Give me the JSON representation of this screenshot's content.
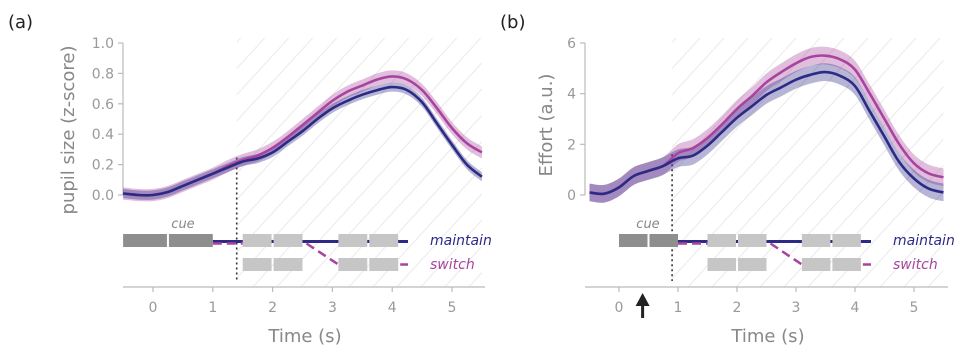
{
  "colors": {
    "maintain": "#2d2a86",
    "switch": "#a8449e",
    "axis": "#bbbbbb",
    "tick_text": "#999999",
    "block_dark": "#8e8e8e",
    "block_light": "#c6c6c6",
    "hatch": "#eaeaea"
  },
  "chart_data": [
    {
      "type": "line",
      "panel_label": "(a)",
      "xlabel": "Time (s)",
      "ylabel": "pupil size (z-score)",
      "xlim": [
        -0.5,
        5.5
      ],
      "ylim": [
        0.0,
        1.0
      ],
      "xticks": [
        0,
        1,
        2,
        3,
        4,
        5
      ],
      "yticks": [
        0.0,
        0.2,
        0.4,
        0.6,
        0.8,
        1.0
      ],
      "ytick_labels": [
        "0.0",
        "0.2",
        "0.4",
        "0.6",
        "0.8",
        "1.0"
      ],
      "grid": false,
      "vline_x": 1.4,
      "x": [
        -0.5,
        -0.25,
        0,
        0.25,
        0.5,
        0.75,
        1.0,
        1.25,
        1.5,
        1.75,
        2.0,
        2.25,
        2.5,
        2.75,
        3.0,
        3.25,
        3.5,
        3.75,
        4.0,
        4.25,
        4.5,
        4.75,
        5.0,
        5.25,
        5.5
      ],
      "series": [
        {
          "name": "maintain",
          "values": [
            0.01,
            0.0,
            0.0,
            0.02,
            0.06,
            0.1,
            0.14,
            0.18,
            0.22,
            0.24,
            0.28,
            0.35,
            0.42,
            0.5,
            0.57,
            0.62,
            0.66,
            0.69,
            0.71,
            0.69,
            0.61,
            0.47,
            0.33,
            0.2,
            0.12
          ],
          "ci": 0.03
        },
        {
          "name": "switch",
          "values": [
            0.01,
            0.0,
            0.0,
            0.02,
            0.06,
            0.1,
            0.14,
            0.19,
            0.23,
            0.26,
            0.31,
            0.38,
            0.46,
            0.54,
            0.62,
            0.68,
            0.72,
            0.76,
            0.78,
            0.76,
            0.69,
            0.57,
            0.44,
            0.34,
            0.28
          ],
          "ci": 0.04
        }
      ],
      "timeline": {
        "cue_label": "cue",
        "cue_block": [
          -0.5,
          1.0
        ],
        "maintain_blocks": [
          [
            1.5,
            2.5
          ],
          [
            3.1,
            4.1
          ]
        ],
        "switch_blocks": [
          [
            1.5,
            2.5
          ],
          [
            3.1,
            4.1
          ]
        ],
        "legend_maintain": "maintain",
        "legend_switch": "switch"
      }
    },
    {
      "type": "line",
      "panel_label": "(b)",
      "xlabel": "Time (s)",
      "ylabel": "Effort (a.u.)",
      "xlim": [
        -0.5,
        5.5
      ],
      "ylim": [
        0,
        6
      ],
      "xticks": [
        0,
        1,
        2,
        3,
        4,
        5
      ],
      "yticks": [
        0,
        2,
        4,
        6
      ],
      "ytick_labels": [
        "0",
        "2",
        "4",
        "6"
      ],
      "grid": false,
      "vline_x": 0.9,
      "arrow_x": 0.4,
      "x": [
        -0.5,
        -0.25,
        0,
        0.25,
        0.5,
        0.75,
        1.0,
        1.25,
        1.5,
        1.75,
        2.0,
        2.25,
        2.5,
        2.75,
        3.0,
        3.25,
        3.5,
        3.75,
        4.0,
        4.25,
        4.5,
        4.75,
        5.0,
        5.25,
        5.5
      ],
      "series": [
        {
          "name": "maintain",
          "values": [
            0.1,
            0.05,
            0.3,
            0.75,
            0.95,
            1.15,
            1.45,
            1.55,
            1.95,
            2.5,
            3.05,
            3.5,
            3.95,
            4.25,
            4.55,
            4.75,
            4.85,
            4.7,
            4.3,
            3.3,
            2.3,
            1.3,
            0.65,
            0.25,
            0.1
          ],
          "ci": 0.35
        },
        {
          "name": "switch",
          "values": [
            0.1,
            0.05,
            0.3,
            0.75,
            0.95,
            1.15,
            1.65,
            1.85,
            2.25,
            2.8,
            3.4,
            3.9,
            4.45,
            4.85,
            5.2,
            5.45,
            5.5,
            5.35,
            4.95,
            4.0,
            3.0,
            2.0,
            1.25,
            0.85,
            0.7
          ],
          "ci": 0.35
        }
      ],
      "timeline": {
        "cue_label": "cue",
        "cue_block": [
          0.0,
          1.0
        ],
        "maintain_blocks": [
          [
            1.5,
            2.5
          ],
          [
            3.1,
            4.1
          ]
        ],
        "switch_blocks": [
          [
            1.5,
            2.5
          ],
          [
            3.1,
            4.1
          ]
        ],
        "legend_maintain": "maintain",
        "legend_switch": "switch"
      }
    }
  ]
}
